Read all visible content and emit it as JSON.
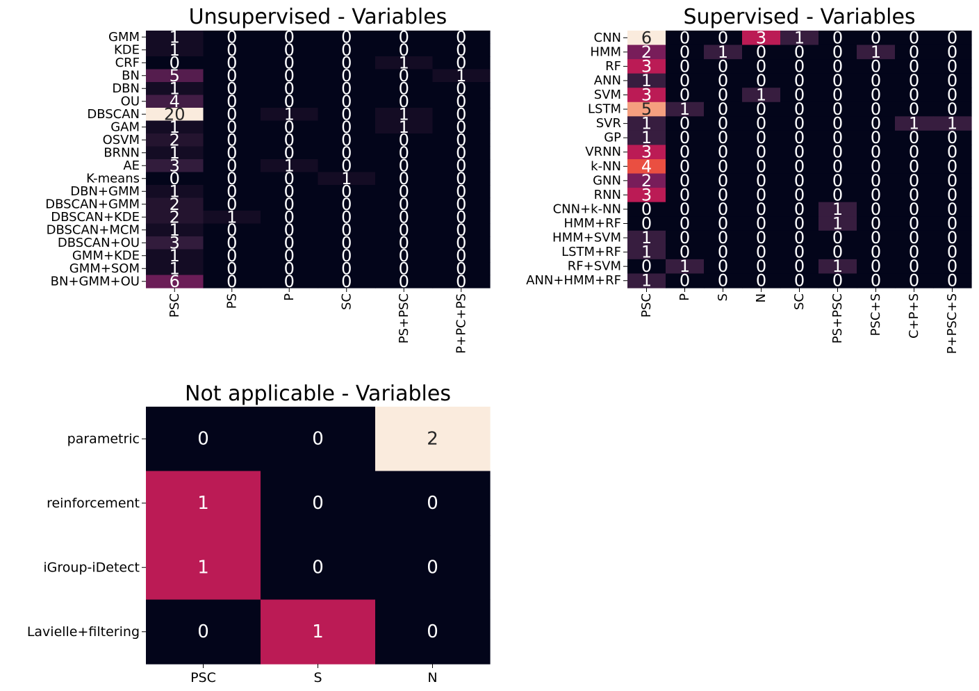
{
  "chart_data": [
    {
      "type": "heatmap",
      "title": "Unsupervised - Variables",
      "rows": [
        "GMM",
        "KDE",
        "CRF",
        "BN",
        "DBN",
        "OU",
        "DBSCAN",
        "GAM",
        "OSVM",
        "BRNN",
        "AE",
        "K-means",
        "DBN+GMM",
        "DBSCAN+GMM",
        "DBSCAN+KDE",
        "DBSCAN+MCM",
        "DBSCAN+OU",
        "GMM+KDE",
        "GMM+SOM",
        "BN+GMM+OU"
      ],
      "columns": [
        "PSC",
        "PS",
        "P",
        "SC",
        "PS+PSC",
        "P+PC+PS"
      ],
      "values": [
        [
          1,
          0,
          0,
          0,
          0,
          0
        ],
        [
          1,
          0,
          0,
          0,
          0,
          0
        ],
        [
          0,
          0,
          0,
          0,
          1,
          0
        ],
        [
          5,
          0,
          0,
          0,
          0,
          1
        ],
        [
          1,
          0,
          0,
          0,
          0,
          0
        ],
        [
          4,
          0,
          0,
          0,
          0,
          0
        ],
        [
          20,
          0,
          1,
          0,
          1,
          0
        ],
        [
          1,
          0,
          0,
          0,
          1,
          0
        ],
        [
          2,
          0,
          0,
          0,
          0,
          0
        ],
        [
          1,
          0,
          0,
          0,
          0,
          0
        ],
        [
          3,
          0,
          1,
          0,
          0,
          0
        ],
        [
          0,
          0,
          0,
          1,
          0,
          0
        ],
        [
          1,
          0,
          0,
          0,
          0,
          0
        ],
        [
          2,
          0,
          0,
          0,
          0,
          0
        ],
        [
          2,
          1,
          0,
          0,
          0,
          0
        ],
        [
          1,
          0,
          0,
          0,
          0,
          0
        ],
        [
          3,
          0,
          0,
          0,
          0,
          0
        ],
        [
          1,
          0,
          0,
          0,
          0,
          0
        ],
        [
          1,
          0,
          0,
          0,
          0,
          0
        ],
        [
          6,
          0,
          0,
          0,
          0,
          0
        ]
      ],
      "vmax": 20,
      "colorbar": false,
      "annotations": true
    },
    {
      "type": "heatmap",
      "title": "Supervised - Variables",
      "rows": [
        "CNN",
        "HMM",
        "RF",
        "ANN",
        "SVM",
        "LSTM",
        "SVR",
        "GP",
        "VRNN",
        "k-NN",
        "GNN",
        "RNN",
        "CNN+k-NN",
        "HMM+RF",
        "HMM+SVM",
        "LSTM+RF",
        "RF+SVM",
        "ANN+HMM+RF"
      ],
      "columns": [
        "PSC",
        "P",
        "S",
        "N",
        "SC",
        "PS+PSC",
        "PSC+S",
        "C+P+S",
        "P+PSC+S"
      ],
      "values": [
        [
          6,
          0,
          0,
          3,
          1,
          0,
          0,
          0,
          0
        ],
        [
          2,
          0,
          1,
          0,
          0,
          0,
          1,
          0,
          0
        ],
        [
          3,
          0,
          0,
          0,
          0,
          0,
          0,
          0,
          0
        ],
        [
          1,
          0,
          0,
          0,
          0,
          0,
          0,
          0,
          0
        ],
        [
          3,
          0,
          0,
          1,
          0,
          0,
          0,
          0,
          0
        ],
        [
          5,
          1,
          0,
          0,
          0,
          0,
          0,
          0,
          0
        ],
        [
          1,
          0,
          0,
          0,
          0,
          0,
          0,
          1,
          1
        ],
        [
          1,
          0,
          0,
          0,
          0,
          0,
          0,
          0,
          0
        ],
        [
          3,
          0,
          0,
          0,
          0,
          0,
          0,
          0,
          0
        ],
        [
          4,
          0,
          0,
          0,
          0,
          0,
          0,
          0,
          0
        ],
        [
          2,
          0,
          0,
          0,
          0,
          0,
          0,
          0,
          0
        ],
        [
          3,
          0,
          0,
          0,
          0,
          0,
          0,
          0,
          0
        ],
        [
          0,
          0,
          0,
          0,
          0,
          1,
          0,
          0,
          0
        ],
        [
          0,
          0,
          0,
          0,
          0,
          1,
          0,
          0,
          0
        ],
        [
          1,
          0,
          0,
          0,
          0,
          0,
          0,
          0,
          0
        ],
        [
          1,
          0,
          0,
          0,
          0,
          0,
          0,
          0,
          0
        ],
        [
          0,
          1,
          0,
          0,
          0,
          1,
          0,
          0,
          0
        ],
        [
          1,
          0,
          0,
          0,
          0,
          0,
          0,
          0,
          0
        ]
      ],
      "vmax": 6,
      "colorbar": false,
      "annotations": true
    },
    {
      "type": "heatmap",
      "title": "Not applicable - Variables",
      "rows": [
        "parametric",
        "reinforcement",
        "iGroup-iDetect",
        "Lavielle+filtering"
      ],
      "columns": [
        "PSC",
        "S",
        "N"
      ],
      "values": [
        [
          0,
          0,
          2
        ],
        [
          1,
          0,
          0
        ],
        [
          1,
          0,
          0
        ],
        [
          0,
          1,
          0
        ]
      ],
      "vmax": 2,
      "colorbar": false,
      "annotations": true
    }
  ],
  "colors": {
    "colormap": "rocket",
    "cmap_stops": [
      "#03051a",
      "#1d1029",
      "#331d3d",
      "#4c1d4b",
      "#6e1d58",
      "#8b1d5f",
      "#ab1a5b",
      "#cb1b4f",
      "#e13342",
      "#ee5d40",
      "#f3805f",
      "#f5a585",
      "#f6c5ad",
      "#faebdd"
    ],
    "text_dark": "#262626",
    "text_light": "#ffffff"
  }
}
